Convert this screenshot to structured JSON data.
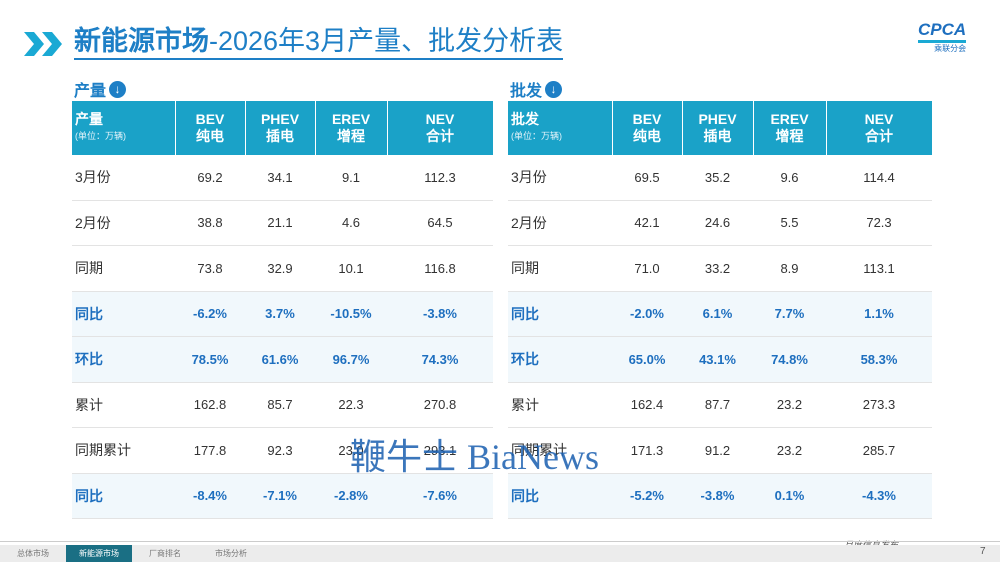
{
  "header": {
    "title_bold": "新能源市场",
    "title_rest": "-2026年3月产量、批发分析表",
    "logo": "CPCA",
    "logo_sub": "乘联分会"
  },
  "tables": [
    {
      "section": "产量",
      "corner": "产量",
      "unit": "(单位：万辆)",
      "columns": [
        {
          "en": "BEV",
          "zh": "纯电"
        },
        {
          "en": "PHEV",
          "zh": "插电"
        },
        {
          "en": "EREV",
          "zh": "增程"
        },
        {
          "en": "NEV",
          "zh": "合计"
        }
      ],
      "rows": [
        {
          "label": "3月份",
          "cells": [
            "69.2",
            "34.1",
            "9.1",
            "112.3"
          ]
        },
        {
          "label": "2月份",
          "cells": [
            "38.8",
            "21.1",
            "4.6",
            "64.5"
          ]
        },
        {
          "label": "同期",
          "cells": [
            "73.8",
            "32.9",
            "10.1",
            "116.8"
          ]
        },
        {
          "label": "同比",
          "cells": [
            "-6.2%",
            "3.7%",
            "-10.5%",
            "-3.8%"
          ],
          "bold": true
        },
        {
          "label": "环比",
          "cells": [
            "78.5%",
            "61.6%",
            "96.7%",
            "74.3%"
          ],
          "bold": true
        },
        {
          "label": "累计",
          "cells": [
            "162.8",
            "85.7",
            "22.3",
            "270.8"
          ]
        },
        {
          "label": "同期累计",
          "cells": [
            "177.8",
            "92.3",
            "23.0",
            "293.1"
          ]
        },
        {
          "label": "同比",
          "cells": [
            "-8.4%",
            "-7.1%",
            "-2.8%",
            "-7.6%"
          ],
          "bold": true
        }
      ]
    },
    {
      "section": "批发",
      "corner": "批发",
      "unit": "(单位：万辆)",
      "columns": [
        {
          "en": "BEV",
          "zh": "纯电"
        },
        {
          "en": "PHEV",
          "zh": "插电"
        },
        {
          "en": "EREV",
          "zh": "增程"
        },
        {
          "en": "NEV",
          "zh": "合计"
        }
      ],
      "rows": [
        {
          "label": "3月份",
          "cells": [
            "69.5",
            "35.2",
            "9.6",
            "114.4"
          ]
        },
        {
          "label": "2月份",
          "cells": [
            "42.1",
            "24.6",
            "5.5",
            "72.3"
          ]
        },
        {
          "label": "同期",
          "cells": [
            "71.0",
            "33.2",
            "8.9",
            "113.1"
          ]
        },
        {
          "label": "同比",
          "cells": [
            "-2.0%",
            "6.1%",
            "7.7%",
            "1.1%"
          ],
          "bold": true
        },
        {
          "label": "环比",
          "cells": [
            "65.0%",
            "43.1%",
            "74.8%",
            "58.3%"
          ],
          "bold": true
        },
        {
          "label": "累计",
          "cells": [
            "162.4",
            "87.7",
            "23.2",
            "273.3"
          ]
        },
        {
          "label": "同期累计",
          "cells": [
            "171.3",
            "91.2",
            "23.2",
            "285.7"
          ]
        },
        {
          "label": "同比",
          "cells": [
            "-5.2%",
            "-3.8%",
            "0.1%",
            "-4.3%"
          ],
          "bold": true
        }
      ]
    }
  ],
  "footer": {
    "tabs": [
      "总体市场",
      "新能源市场",
      "厂商排名",
      "市场分析"
    ],
    "active": 1,
    "caption": "月度信息发布",
    "page": "7"
  },
  "watermark": "鞭牛士 BiaNews"
}
